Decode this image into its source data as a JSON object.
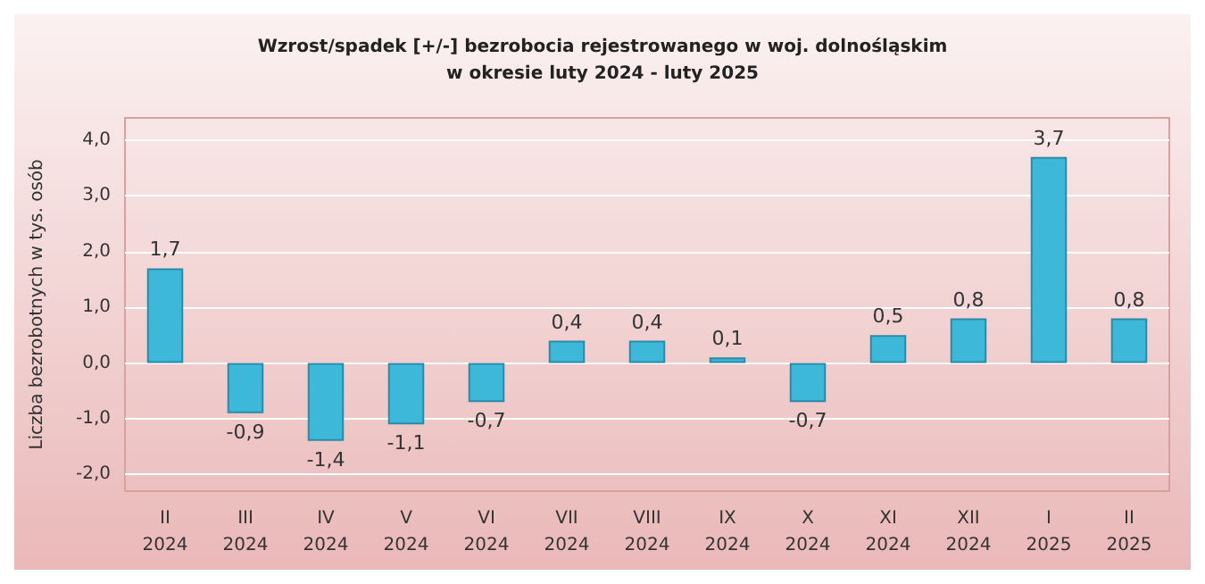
{
  "chart_data": {
    "type": "bar",
    "title": "Wzrost/spadek [+/-] bezrobocia rejestrowanego w woj. dolnośląskim\nw okresie luty 2024 - luty 2025",
    "ylabel": "Liczba bezrobotnych w tys. osób",
    "categories": [
      "II\n2024",
      "III\n2024",
      "IV\n2024",
      "V\n2024",
      "VI\n2024",
      "VII\n2024",
      "VIII\n2024",
      "IX\n2024",
      "X\n2024",
      "XI\n2024",
      "XII\n2024",
      "I\n2025",
      "II\n2025"
    ],
    "values": [
      1.7,
      -0.9,
      -1.4,
      -1.1,
      -0.7,
      0.4,
      0.4,
      0.1,
      -0.7,
      0.5,
      0.8,
      3.7,
      0.8
    ],
    "value_labels": [
      "1,7",
      "-0,9",
      "-1,4",
      "-1,1",
      "-0,7",
      "0,4",
      "0,4",
      "0,1",
      "-0,7",
      "0,5",
      "0,8",
      "3,7",
      "0,8"
    ],
    "color": "#3db8d8",
    "ylim": [
      -2.3,
      4.4
    ],
    "yticks": [
      {
        "value": -2,
        "label": "-2,0"
      },
      {
        "value": -1,
        "label": "-1,0"
      },
      {
        "value": 0,
        "label": "0,0"
      },
      {
        "value": 1,
        "label": "1,0"
      },
      {
        "value": 2,
        "label": "2,0"
      },
      {
        "value": 3,
        "label": "3,0"
      },
      {
        "value": 4,
        "label": "4,0"
      }
    ],
    "grid": "y"
  }
}
